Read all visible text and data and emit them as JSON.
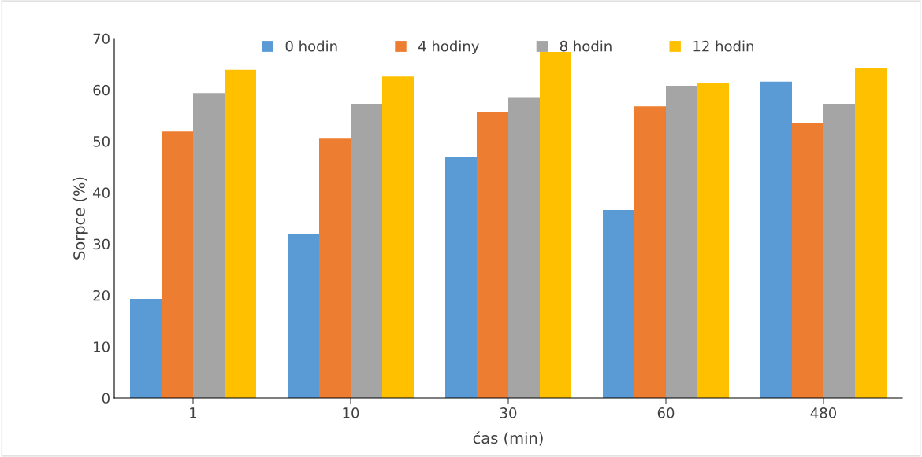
{
  "chart_data": {
    "type": "bar",
    "xlabel": "ćas (min)",
    "ylabel": "Sorpce (%)",
    "categories": [
      "1",
      "10",
      "30",
      "60",
      "480"
    ],
    "series": [
      {
        "name": "0 hodin",
        "color": "#5b9bd5",
        "values": [
          19.3,
          31.9,
          46.9,
          36.6,
          61.6
        ]
      },
      {
        "name": "4 hodiny",
        "color": "#ed7d31",
        "values": [
          51.9,
          50.5,
          55.7,
          56.8,
          53.6
        ]
      },
      {
        "name": "8 hodin",
        "color": "#a5a5a5",
        "values": [
          59.4,
          57.3,
          58.6,
          60.8,
          57.3
        ]
      },
      {
        "name": "12 hodin",
        "color": "#ffc000",
        "values": [
          63.9,
          62.6,
          67.4,
          61.4,
          64.3
        ]
      }
    ],
    "ylim": [
      0,
      70
    ],
    "yticks": [
      0,
      10,
      20,
      30,
      40,
      50,
      60,
      70
    ],
    "grid": false,
    "legend": "top"
  }
}
